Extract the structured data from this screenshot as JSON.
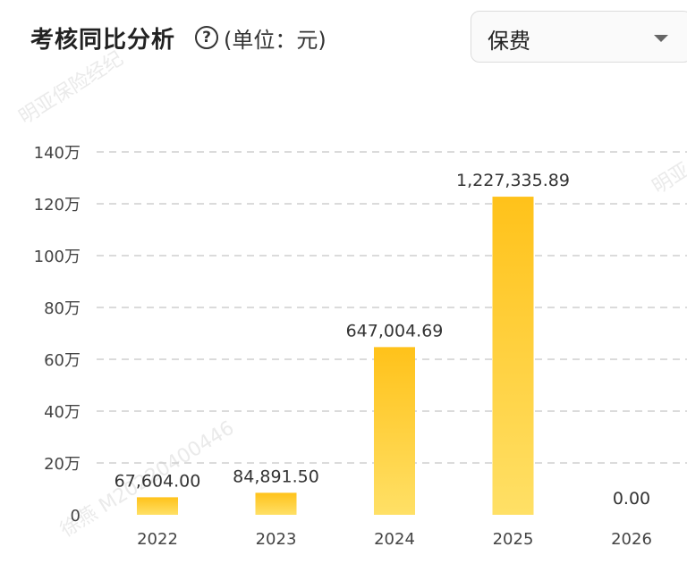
{
  "header": {
    "title": "考核同比分析",
    "help_icon": "question-circle-icon",
    "unit": "(单位：元)"
  },
  "filter": {
    "selected": "保费",
    "icon": "caret-down-icon"
  },
  "watermarks": [
    "明亚保险经纪",
    "徐燕 M20220400446",
    "明亚"
  ],
  "colors": {
    "bar_top": "#FFC21A",
    "bar_bottom": "#FFE066",
    "grid": "#CFCFCF"
  },
  "chart_data": {
    "type": "bar",
    "categories": [
      "2022",
      "2023",
      "2024",
      "2025",
      "2026"
    ],
    "values": [
      67604.0,
      84891.5,
      647004.69,
      1227335.89,
      0.0
    ],
    "data_labels": [
      "67,604.00",
      "84,891.50",
      "647,004.69",
      "1,227,335.89",
      "0.00"
    ],
    "y_ticks": [
      0,
      200000,
      400000,
      600000,
      800000,
      1000000,
      1200000,
      1400000
    ],
    "y_tick_labels": [
      "0",
      "20万",
      "40万",
      "60万",
      "80万",
      "100万",
      "120万",
      "140万"
    ],
    "ylim": [
      0,
      1400000
    ],
    "grid": true
  }
}
